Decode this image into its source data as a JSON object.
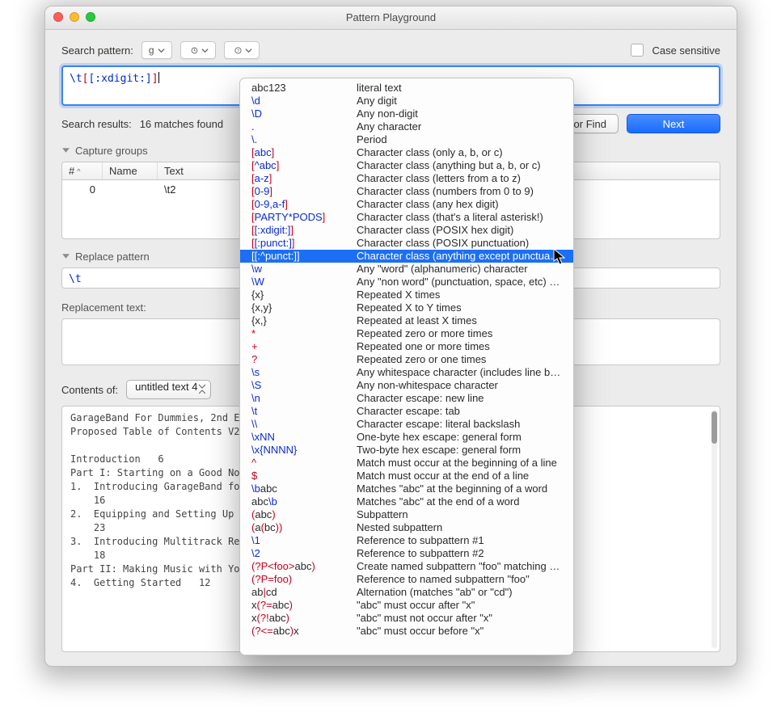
{
  "window": {
    "title": "Pattern Playground"
  },
  "traffic": {
    "close": "#ff5f56",
    "minimize": "#ffbd2e",
    "zoom": "#27c93f"
  },
  "top": {
    "search_label": "Search pattern:",
    "pill_flags": "g",
    "case_label": "Case sensitive",
    "pattern_prefix": "\\t",
    "pattern_bracket_open": "[",
    "pattern_body": "[:xdigit:]",
    "pattern_bracket_close": "]"
  },
  "results": {
    "label": "Search results:",
    "match_text": "16 matches found",
    "for_find": "for Find",
    "next": "Next"
  },
  "capture": {
    "heading": "Capture groups",
    "cols": {
      "num": "#",
      "name": "Name",
      "text": "Text"
    },
    "row": {
      "num": "0",
      "name": "",
      "text": "\\t2"
    }
  },
  "replace": {
    "heading": "Replace pattern",
    "value": "\\t",
    "replacement_label": "Replacement text:"
  },
  "doc": {
    "label": "Contents of:",
    "selected": "untitled text 4",
    "body_l1": "GarageBand For Dummies, 2nd E",
    "body_l2": "Proposed Table of Contents V2",
    "body_l3": "",
    "body_l4": "Introduction   6",
    "body_l5": "Part I: Starting on a Good No",
    "body_l6": "1.  Introducing GarageBand fo",
    "body_l7": "    16",
    "body_l8": "2.  Equipping and Setting Up ",
    "body_l9": "    23",
    "body_l10": "3.  Introducing Multitrack Re",
    "body_l11": "    18",
    "body_l12": "Part II: Making Music with Yo",
    "body_l13": "4.  Getting Started   12"
  },
  "menu": {
    "highlighted_index": 12,
    "items": [
      {
        "ex": [
          {
            "t": "abc123",
            "c": "k"
          }
        ],
        "desc": "literal text"
      },
      {
        "ex": [
          {
            "t": "\\d",
            "c": "b"
          }
        ],
        "desc": "Any digit"
      },
      {
        "ex": [
          {
            "t": "\\D",
            "c": "b"
          }
        ],
        "desc": "Any non-digit"
      },
      {
        "ex": [
          {
            "t": ".",
            "c": "b"
          }
        ],
        "desc": "Any character"
      },
      {
        "ex": [
          {
            "t": "\\.",
            "c": "b"
          }
        ],
        "desc": "Period"
      },
      {
        "ex": [
          {
            "t": "[",
            "c": "r"
          },
          {
            "t": "abc",
            "c": "b"
          },
          {
            "t": "]",
            "c": "r"
          }
        ],
        "desc": "Character class (only a, b, or c)"
      },
      {
        "ex": [
          {
            "t": "[",
            "c": "r"
          },
          {
            "t": "^abc",
            "c": "b"
          },
          {
            "t": "]",
            "c": "r"
          }
        ],
        "desc": "Character class (anything but a, b, or c)"
      },
      {
        "ex": [
          {
            "t": "[",
            "c": "r"
          },
          {
            "t": "a-z",
            "c": "b"
          },
          {
            "t": "]",
            "c": "r"
          }
        ],
        "desc": "Character class (letters from a to z)"
      },
      {
        "ex": [
          {
            "t": "[",
            "c": "r"
          },
          {
            "t": "0-9",
            "c": "b"
          },
          {
            "t": "]",
            "c": "r"
          }
        ],
        "desc": "Character class (numbers from 0 to 9)"
      },
      {
        "ex": [
          {
            "t": "[",
            "c": "r"
          },
          {
            "t": "0-9,a-f",
            "c": "b"
          },
          {
            "t": "]",
            "c": "r"
          }
        ],
        "desc": "Character class (any hex digit)"
      },
      {
        "ex": [
          {
            "t": "[",
            "c": "r"
          },
          {
            "t": "PARTY*PODS",
            "c": "b"
          },
          {
            "t": "]",
            "c": "r"
          }
        ],
        "desc": "Character class (that's a literal asterisk!)"
      },
      {
        "ex": [
          {
            "t": "[",
            "c": "r"
          },
          {
            "t": "[:xdigit:]",
            "c": "b"
          },
          {
            "t": "]",
            "c": "r"
          }
        ],
        "desc": "Character class (POSIX hex digit)"
      },
      {
        "ex": [
          {
            "t": "[",
            "c": "r"
          },
          {
            "t": "[:punct:]",
            "c": "b"
          },
          {
            "t": "]",
            "c": "r"
          }
        ],
        "desc": "Character class (POSIX punctuation)"
      },
      {
        "ex": [
          {
            "t": "[",
            "c": "r"
          },
          {
            "t": "[:^punct:]",
            "c": "b"
          },
          {
            "t": "]",
            "c": "r"
          }
        ],
        "desc": "Character class (anything except punctuation)"
      },
      {
        "ex": [
          {
            "t": "\\w",
            "c": "b"
          }
        ],
        "desc": "Any \"word\" (alphanumeric) character"
      },
      {
        "ex": [
          {
            "t": "\\W",
            "c": "b"
          }
        ],
        "desc": "Any \"non word\" (punctuation, space, etc) character"
      },
      {
        "ex": [
          {
            "t": "{x}",
            "c": "k"
          }
        ],
        "desc": "Repeated X times"
      },
      {
        "ex": [
          {
            "t": "{x,y}",
            "c": "k"
          }
        ],
        "desc": "Repeated X to Y times"
      },
      {
        "ex": [
          {
            "t": "{x,}",
            "c": "k"
          }
        ],
        "desc": "Repeated at least X times"
      },
      {
        "ex": [
          {
            "t": "*",
            "c": "r"
          }
        ],
        "desc": "Repeated zero or more times"
      },
      {
        "ex": [
          {
            "t": "+",
            "c": "r"
          }
        ],
        "desc": "Repeated one or more times"
      },
      {
        "ex": [
          {
            "t": "?",
            "c": "r"
          }
        ],
        "desc": "Repeated zero or one times"
      },
      {
        "ex": [
          {
            "t": "\\s",
            "c": "b"
          }
        ],
        "desc": "Any whitespace character (includes line breaks)"
      },
      {
        "ex": [
          {
            "t": "\\S",
            "c": "b"
          }
        ],
        "desc": "Any non-whitespace character"
      },
      {
        "ex": [
          {
            "t": "\\n",
            "c": "b"
          }
        ],
        "desc": "Character escape: new line"
      },
      {
        "ex": [
          {
            "t": "\\t",
            "c": "b"
          }
        ],
        "desc": "Character escape: tab"
      },
      {
        "ex": [
          {
            "t": "\\\\",
            "c": "b"
          }
        ],
        "desc": "Character escape: literal backslash"
      },
      {
        "ex": [
          {
            "t": "\\xNN",
            "c": "b"
          }
        ],
        "desc": "One-byte hex escape: general form"
      },
      {
        "ex": [
          {
            "t": "\\x{NNNN}",
            "c": "b"
          }
        ],
        "desc": "Two-byte hex escape: general form"
      },
      {
        "ex": [
          {
            "t": "^",
            "c": "r"
          }
        ],
        "desc": "Match must occur at the beginning of a line"
      },
      {
        "ex": [
          {
            "t": "$",
            "c": "r"
          }
        ],
        "desc": "Match must occur at the end of a line"
      },
      {
        "ex": [
          {
            "t": "\\b",
            "c": "b"
          },
          {
            "t": "abc",
            "c": "k"
          }
        ],
        "desc": "Matches \"abc\" at the beginning of a word"
      },
      {
        "ex": [
          {
            "t": "abc",
            "c": "k"
          },
          {
            "t": "\\b",
            "c": "b"
          }
        ],
        "desc": "Matches \"abc\" at the end of a word"
      },
      {
        "ex": [
          {
            "t": "(",
            "c": "r"
          },
          {
            "t": "abc",
            "c": "k"
          },
          {
            "t": ")",
            "c": "r"
          }
        ],
        "desc": "Subpattern"
      },
      {
        "ex": [
          {
            "t": "(",
            "c": "r"
          },
          {
            "t": "a",
            "c": "k"
          },
          {
            "t": "(",
            "c": "r"
          },
          {
            "t": "bc",
            "c": "k"
          },
          {
            "t": ")",
            "c": "r"
          },
          {
            "t": ")",
            "c": "r"
          }
        ],
        "desc": "Nested subpattern"
      },
      {
        "ex": [
          {
            "t": "\\1",
            "c": "b"
          }
        ],
        "desc": "Reference to subpattern #1"
      },
      {
        "ex": [
          {
            "t": "\\2",
            "c": "b"
          }
        ],
        "desc": "Reference to subpattern #2"
      },
      {
        "ex": [
          {
            "t": "(",
            "c": "r"
          },
          {
            "t": "?P<foo>",
            "c": "r"
          },
          {
            "t": "abc",
            "c": "k"
          },
          {
            "t": ")",
            "c": "r"
          }
        ],
        "desc": "Create named subpattern \"foo\" matching \"abc\""
      },
      {
        "ex": [
          {
            "t": "(",
            "c": "r"
          },
          {
            "t": "?P=foo",
            "c": "r"
          },
          {
            "t": ")",
            "c": "r"
          }
        ],
        "desc": "Reference to named subpattern \"foo\""
      },
      {
        "ex": [
          {
            "t": "ab",
            "c": "k"
          },
          {
            "t": "|",
            "c": "r"
          },
          {
            "t": "cd",
            "c": "k"
          }
        ],
        "desc": "Alternation (matches \"ab\" or \"cd\")"
      },
      {
        "ex": [
          {
            "t": "x",
            "c": "k"
          },
          {
            "t": "(",
            "c": "r"
          },
          {
            "t": "?=",
            "c": "r"
          },
          {
            "t": "abc",
            "c": "k"
          },
          {
            "t": ")",
            "c": "r"
          }
        ],
        "desc": "\"abc\" must occur after \"x\""
      },
      {
        "ex": [
          {
            "t": "x",
            "c": "k"
          },
          {
            "t": "(",
            "c": "r"
          },
          {
            "t": "?!",
            "c": "r"
          },
          {
            "t": "abc",
            "c": "k"
          },
          {
            "t": ")",
            "c": "r"
          }
        ],
        "desc": "\"abc\" must not occur after \"x\""
      },
      {
        "ex": [
          {
            "t": "(",
            "c": "r"
          },
          {
            "t": "?<=",
            "c": "r"
          },
          {
            "t": "abc",
            "c": "k"
          },
          {
            "t": ")",
            "c": "r"
          },
          {
            "t": "x",
            "c": "k"
          }
        ],
        "desc": "\"abc\" must occur before \"x\""
      }
    ]
  }
}
